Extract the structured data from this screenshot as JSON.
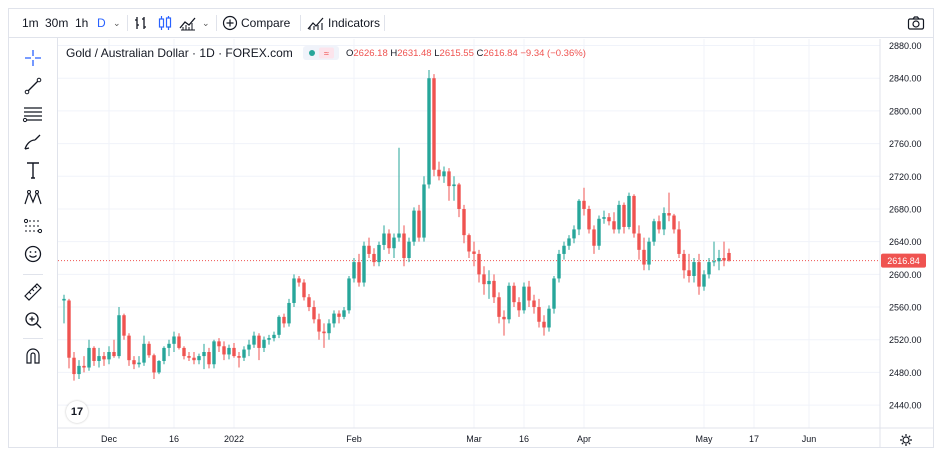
{
  "toolbar": {
    "intervals": [
      "1m",
      "30m",
      "1h",
      "D"
    ],
    "active_interval": "D",
    "compare_label": "Compare",
    "indicators_label": "Indicators"
  },
  "sidebar": {
    "tools": [
      "crosshair-icon",
      "trend-line-icon",
      "fib-icon",
      "brush-icon",
      "text-icon",
      "pattern-icon",
      "forecast-icon",
      "emoji-icon",
      "ruler-icon",
      "zoom-icon",
      "magnet-icon"
    ]
  },
  "legend": {
    "symbol": "Gold / Australian Dollar · 1D · FOREX.com",
    "open_label": "O",
    "open": "2626.18",
    "high_label": "H",
    "high": "2631.48",
    "low_label": "L",
    "low": "2615.55",
    "close_label": "C",
    "close": "2616.84",
    "change": "−9.34 (−0.36%)"
  },
  "logo_text": "17",
  "colors": {
    "up": "#26a69a",
    "down": "#ef5350",
    "grid": "#f0f3fa",
    "axis_text": "#131722",
    "last_price_line": "#ef5350"
  },
  "chart_data": {
    "type": "candlestick",
    "title": "Gold / Australian Dollar · 1D · FOREX.com",
    "y_ticks": [
      2440,
      2480,
      2520,
      2560,
      2600,
      2640,
      2680,
      2720,
      2760,
      2800,
      2840,
      2880
    ],
    "y_tick_labels": [
      "2440.00",
      "2480.00",
      "2520.00",
      "2560.00",
      "2600.00",
      "2640.00",
      "2680.00",
      "2720.00",
      "2760.00",
      "2800.00",
      "2840.00",
      "2880.00"
    ],
    "ylim": [
      2412,
      2888
    ],
    "x_labels": [
      {
        "index": 9,
        "label": "Dec"
      },
      {
        "index": 22,
        "label": "16"
      },
      {
        "index": 34,
        "label": "2022"
      },
      {
        "index": 58,
        "label": "Feb"
      },
      {
        "index": 82,
        "label": "Mar"
      },
      {
        "index": 92,
        "label": "16"
      },
      {
        "index": 104,
        "label": "Apr"
      },
      {
        "index": 128,
        "label": "May"
      },
      {
        "index": 138,
        "label": "17"
      },
      {
        "index": 149,
        "label": "Jun"
      }
    ],
    "last_price": 2616.84,
    "last_price_label": "2616.84",
    "candles": [
      [
        2568,
        2575,
        2540,
        2570
      ],
      [
        2568,
        2570,
        2485,
        2498
      ],
      [
        2498,
        2505,
        2470,
        2478
      ],
      [
        2478,
        2495,
        2472,
        2488
      ],
      [
        2488,
        2500,
        2480,
        2486
      ],
      [
        2486,
        2520,
        2482,
        2510
      ],
      [
        2510,
        2512,
        2488,
        2494
      ],
      [
        2494,
        2510,
        2486,
        2500
      ],
      [
        2500,
        2505,
        2488,
        2496
      ],
      [
        2496,
        2512,
        2490,
        2505
      ],
      [
        2505,
        2520,
        2498,
        2500
      ],
      [
        2500,
        2560,
        2497,
        2550
      ],
      [
        2550,
        2552,
        2520,
        2525
      ],
      [
        2525,
        2528,
        2488,
        2495
      ],
      [
        2495,
        2500,
        2484,
        2490
      ],
      [
        2490,
        2500,
        2486,
        2492
      ],
      [
        2492,
        2525,
        2488,
        2515
      ],
      [
        2515,
        2518,
        2498,
        2501
      ],
      [
        2501,
        2503,
        2472,
        2480
      ],
      [
        2480,
        2495,
        2478,
        2494
      ],
      [
        2494,
        2512,
        2490,
        2510
      ],
      [
        2510,
        2520,
        2500,
        2515
      ],
      [
        2515,
        2530,
        2505,
        2524
      ],
      [
        2524,
        2528,
        2508,
        2510
      ],
      [
        2510,
        2512,
        2496,
        2500
      ],
      [
        2500,
        2505,
        2494,
        2498
      ],
      [
        2498,
        2505,
        2490,
        2495
      ],
      [
        2495,
        2503,
        2490,
        2500
      ],
      [
        2500,
        2515,
        2484,
        2505
      ],
      [
        2505,
        2510,
        2485,
        2490
      ],
      [
        2490,
        2520,
        2485,
        2518
      ],
      [
        2518,
        2522,
        2505,
        2512
      ],
      [
        2512,
        2518,
        2495,
        2502
      ],
      [
        2502,
        2514,
        2496,
        2510
      ],
      [
        2510,
        2516,
        2498,
        2500
      ],
      [
        2500,
        2505,
        2486,
        2498
      ],
      [
        2498,
        2512,
        2494,
        2508
      ],
      [
        2508,
        2520,
        2500,
        2514
      ],
      [
        2514,
        2530,
        2510,
        2525
      ],
      [
        2525,
        2528,
        2495,
        2510
      ],
      [
        2510,
        2524,
        2505,
        2520
      ],
      [
        2520,
        2526,
        2514,
        2522
      ],
      [
        2522,
        2530,
        2518,
        2526
      ],
      [
        2526,
        2550,
        2522,
        2548
      ],
      [
        2548,
        2552,
        2535,
        2540
      ],
      [
        2540,
        2570,
        2536,
        2565
      ],
      [
        2565,
        2600,
        2560,
        2595
      ],
      [
        2595,
        2598,
        2585,
        2590
      ],
      [
        2590,
        2594,
        2568,
        2572
      ],
      [
        2572,
        2576,
        2555,
        2560
      ],
      [
        2560,
        2568,
        2540,
        2545
      ],
      [
        2545,
        2552,
        2520,
        2530
      ],
      [
        2530,
        2540,
        2510,
        2528
      ],
      [
        2528,
        2545,
        2520,
        2540
      ],
      [
        2540,
        2556,
        2535,
        2552
      ],
      [
        2552,
        2556,
        2540,
        2548
      ],
      [
        2548,
        2560,
        2545,
        2556
      ],
      [
        2556,
        2598,
        2552,
        2595
      ],
      [
        2595,
        2620,
        2590,
        2615
      ],
      [
        2615,
        2625,
        2585,
        2590
      ],
      [
        2590,
        2640,
        2585,
        2635
      ],
      [
        2635,
        2645,
        2620,
        2625
      ],
      [
        2625,
        2632,
        2610,
        2615
      ],
      [
        2615,
        2640,
        2610,
        2636
      ],
      [
        2636,
        2660,
        2630,
        2650
      ],
      [
        2650,
        2655,
        2625,
        2632
      ],
      [
        2632,
        2650,
        2620,
        2645
      ],
      [
        2645,
        2755,
        2640,
        2650
      ],
      [
        2650,
        2660,
        2610,
        2620
      ],
      [
        2620,
        2645,
        2615,
        2640
      ],
      [
        2640,
        2682,
        2635,
        2678
      ],
      [
        2678,
        2685,
        2640,
        2645
      ],
      [
        2645,
        2720,
        2640,
        2710
      ],
      [
        2710,
        2850,
        2705,
        2840
      ],
      [
        2840,
        2845,
        2720,
        2728
      ],
      [
        2728,
        2738,
        2715,
        2720
      ],
      [
        2720,
        2732,
        2712,
        2726
      ],
      [
        2726,
        2730,
        2690,
        2708
      ],
      [
        2708,
        2720,
        2690,
        2710
      ],
      [
        2710,
        2712,
        2670,
        2680
      ],
      [
        2680,
        2685,
        2638,
        2648
      ],
      [
        2648,
        2650,
        2620,
        2628
      ],
      [
        2628,
        2640,
        2610,
        2625
      ],
      [
        2625,
        2630,
        2590,
        2600
      ],
      [
        2600,
        2610,
        2575,
        2588
      ],
      [
        2588,
        2605,
        2570,
        2592
      ],
      [
        2592,
        2600,
        2565,
        2572
      ],
      [
        2572,
        2578,
        2540,
        2548
      ],
      [
        2548,
        2556,
        2525,
        2545
      ],
      [
        2545,
        2590,
        2540,
        2586
      ],
      [
        2586,
        2590,
        2560,
        2566
      ],
      [
        2566,
        2572,
        2548,
        2556
      ],
      [
        2556,
        2590,
        2552,
        2585
      ],
      [
        2585,
        2592,
        2560,
        2568
      ],
      [
        2568,
        2575,
        2552,
        2560
      ],
      [
        2560,
        2570,
        2535,
        2542
      ],
      [
        2542,
        2550,
        2525,
        2535
      ],
      [
        2535,
        2562,
        2530,
        2558
      ],
      [
        2558,
        2598,
        2552,
        2595
      ],
      [
        2595,
        2630,
        2590,
        2625
      ],
      [
        2625,
        2640,
        2618,
        2635
      ],
      [
        2635,
        2648,
        2630,
        2644
      ],
      [
        2644,
        2660,
        2638,
        2655
      ],
      [
        2655,
        2692,
        2648,
        2690
      ],
      [
        2690,
        2706,
        2672,
        2680
      ],
      [
        2680,
        2684,
        2650,
        2655
      ],
      [
        2655,
        2660,
        2625,
        2635
      ],
      [
        2635,
        2672,
        2630,
        2668
      ],
      [
        2668,
        2678,
        2662,
        2670
      ],
      [
        2670,
        2675,
        2660,
        2665
      ],
      [
        2665,
        2676,
        2650,
        2655
      ],
      [
        2655,
        2690,
        2650,
        2685
      ],
      [
        2685,
        2688,
        2650,
        2658
      ],
      [
        2658,
        2700,
        2655,
        2696
      ],
      [
        2696,
        2698,
        2645,
        2650
      ],
      [
        2650,
        2660,
        2618,
        2630
      ],
      [
        2630,
        2645,
        2605,
        2612
      ],
      [
        2612,
        2645,
        2605,
        2640
      ],
      [
        2640,
        2668,
        2635,
        2665
      ],
      [
        2665,
        2672,
        2650,
        2655
      ],
      [
        2655,
        2682,
        2648,
        2675
      ],
      [
        2675,
        2700,
        2665,
        2672
      ],
      [
        2672,
        2674,
        2650,
        2655
      ],
      [
        2655,
        2665,
        2620,
        2625
      ],
      [
        2625,
        2630,
        2595,
        2605
      ],
      [
        2605,
        2625,
        2590,
        2598
      ],
      [
        2598,
        2620,
        2590,
        2615
      ],
      [
        2615,
        2625,
        2575,
        2585
      ],
      [
        2585,
        2605,
        2580,
        2600
      ],
      [
        2600,
        2620,
        2595,
        2615
      ],
      [
        2615,
        2640,
        2610,
        2616
      ],
      [
        2616,
        2630,
        2605,
        2620
      ],
      [
        2620,
        2640,
        2610,
        2617
      ],
      [
        2626.18,
        2631.48,
        2615.55,
        2616.84
      ]
    ]
  }
}
